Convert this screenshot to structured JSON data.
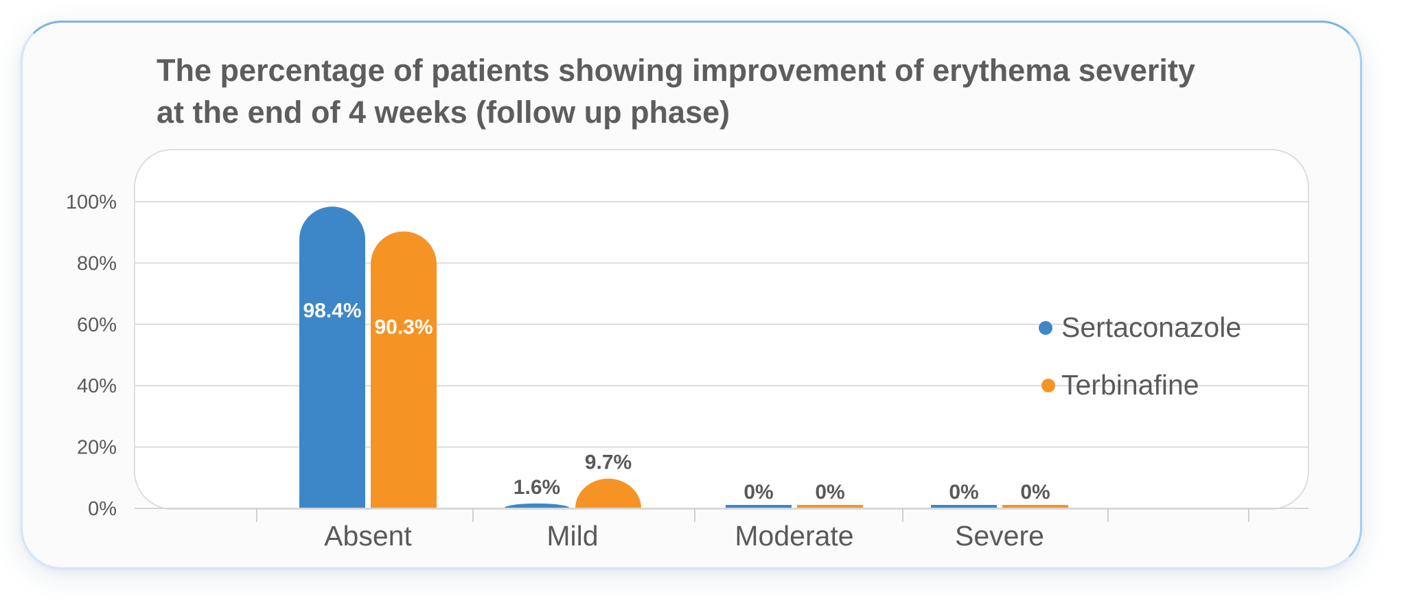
{
  "chart_data": {
    "type": "bar",
    "title": "The percentage of patients showing improvement of erythema severity\nat the end of 4 weeks (follow up phase)",
    "categories": [
      "Absent",
      "Mild",
      "Moderate",
      "Severe"
    ],
    "series": [
      {
        "name": "Sertaconazole",
        "values": [
          98.4,
          1.6,
          0,
          0
        ],
        "labels": [
          "98.4%",
          "1.6%",
          "0%",
          "0%"
        ],
        "color": "#3d87c9"
      },
      {
        "name": "Terbinafine",
        "values": [
          90.3,
          9.7,
          0,
          0
        ],
        "labels": [
          "90.3%",
          "9.7%",
          "0%",
          "0%"
        ],
        "color": "#f59425"
      }
    ],
    "y_ticks": [
      "0%",
      "20%",
      "40%",
      "60%",
      "80%",
      "100%"
    ],
    "ylim": [
      0,
      100
    ],
    "grid": true,
    "legend_position": "right",
    "label_colors": {
      "inside": "#ffffff",
      "outside": "#595959"
    }
  }
}
